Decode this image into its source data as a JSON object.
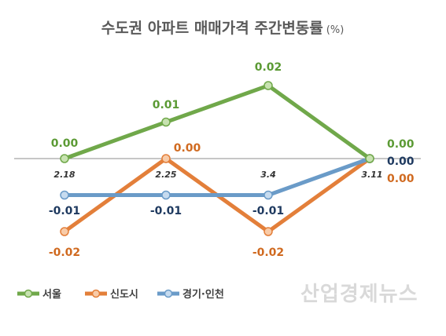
{
  "chart_data": {
    "type": "line",
    "title": "수도권 아파트 매매가격 주간변동률",
    "title_unit": "(%)",
    "categories": [
      "2.18",
      "2.25",
      "3.4",
      "3.11"
    ],
    "ylim": [
      -0.02,
      0.02
    ],
    "grid": false,
    "legend_position": "bottom-left",
    "series": [
      {
        "name": "서울",
        "values": [
          0.0,
          0.01,
          0.02,
          0.0
        ],
        "labels": [
          "0.00",
          "0.01",
          "0.02",
          "0.00"
        ],
        "color": "#70a84a",
        "marker_fill": "#c7e2b0",
        "label_color": "#5b9a34"
      },
      {
        "name": "신도시",
        "values": [
          -0.02,
          0.0,
          -0.02,
          0.0
        ],
        "labels": [
          "-0.02",
          "0.00",
          "-0.02",
          "0.00"
        ],
        "color": "#e37f3a",
        "marker_fill": "#f8cba8",
        "label_color": "#d06a20"
      },
      {
        "name": "경기·인천",
        "values": [
          -0.01,
          -0.01,
          -0.01,
          0.0
        ],
        "labels": [
          "-0.01",
          "-0.01",
          "-0.01",
          "0.00"
        ],
        "color": "#6a9bc8",
        "marker_fill": "#c6dbef",
        "label_color": "#1f3a60"
      }
    ]
  },
  "watermark": "산업경제뉴스"
}
